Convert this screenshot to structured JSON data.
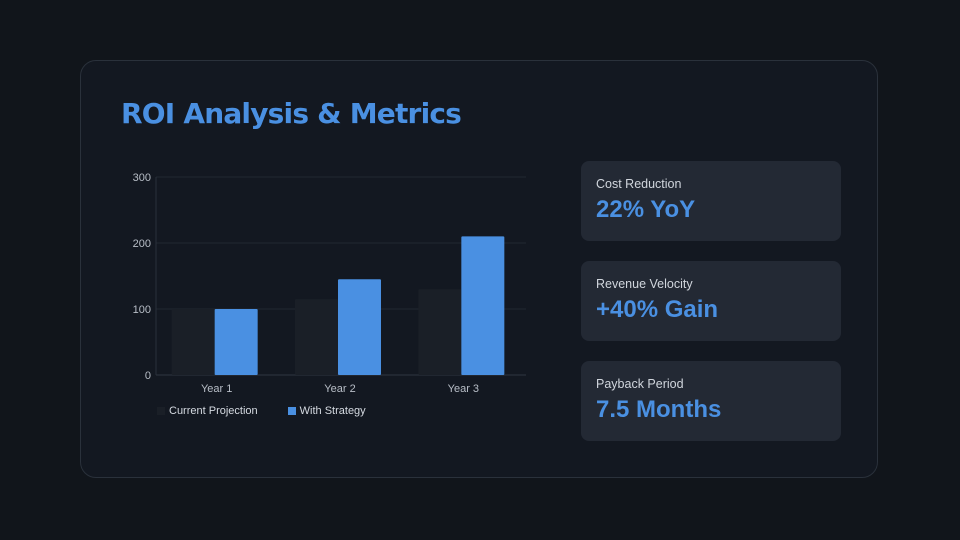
{
  "title": "ROI Analysis & Metrics",
  "colors": {
    "accent": "#4a90e2",
    "current": "#1a1f27",
    "card_bg": "#232934"
  },
  "chart_data": {
    "type": "bar",
    "categories": [
      "Year 1",
      "Year 2",
      "Year 3"
    ],
    "series": [
      {
        "name": "Current Projection",
        "values": [
          100,
          115,
          130
        ],
        "color": "#1a1f27"
      },
      {
        "name": "With Strategy",
        "values": [
          100,
          145,
          210
        ],
        "color": "#4a90e2"
      }
    ],
    "ylim": [
      0,
      300
    ],
    "yticks": [
      "0",
      "100",
      "200",
      "300"
    ],
    "title": "",
    "xlabel": "",
    "ylabel": "",
    "grid": true,
    "legend": "bottom-left"
  },
  "metrics": [
    {
      "label": "Cost Reduction",
      "value": "22% YoY"
    },
    {
      "label": "Revenue Velocity",
      "value": "+40% Gain"
    },
    {
      "label": "Payback Period",
      "value": "7.5 Months"
    }
  ]
}
